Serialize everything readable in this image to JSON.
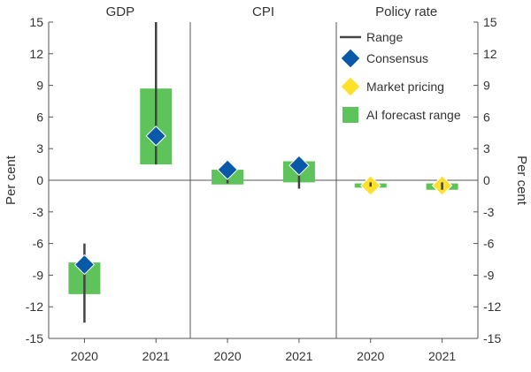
{
  "chart_data": {
    "type": "range-marker",
    "panels": [
      {
        "title": "GDP",
        "categories": [
          "2020",
          "2021"
        ],
        "range": [
          [
            -13.5,
            -6.0
          ],
          [
            1.5,
            15.0
          ]
        ],
        "consensus": [
          -8.0,
          4.2
        ],
        "market_pricing": [
          null,
          null
        ],
        "ai_forecast_range": [
          [
            -10.8,
            -7.8
          ],
          [
            1.5,
            8.7
          ]
        ]
      },
      {
        "title": "CPI",
        "categories": [
          "2020",
          "2021"
        ],
        "range": [
          [
            -0.3,
            1.5
          ],
          [
            -0.8,
            2.0
          ]
        ],
        "consensus": [
          1.0,
          1.4
        ],
        "market_pricing": [
          null,
          null
        ],
        "ai_forecast_range": [
          [
            -0.4,
            1.0
          ],
          [
            -0.2,
            1.8
          ]
        ]
      },
      {
        "title": "Policy rate",
        "categories": [
          "2020",
          "2021"
        ],
        "range": [
          [
            -0.6,
            -0.2
          ],
          [
            -0.9,
            -0.2
          ]
        ],
        "consensus": [
          null,
          null
        ],
        "market_pricing": [
          -0.5,
          -0.5
        ],
        "ai_forecast_range": [
          [
            -0.7,
            -0.3
          ],
          [
            -0.9,
            -0.3
          ]
        ]
      }
    ],
    "ylim": [
      -15,
      15
    ],
    "yticks": [
      -15,
      -12,
      -9,
      -6,
      -3,
      0,
      3,
      6,
      9,
      12,
      15
    ],
    "ylabel_left": "Per cent",
    "ylabel_right": "Per cent",
    "legend": {
      "position": "top-right",
      "items": [
        {
          "key": "range",
          "label": "Range",
          "color": "#444444"
        },
        {
          "key": "consensus",
          "label": "Consensus",
          "color": "#0a58a8"
        },
        {
          "key": "market_pricing",
          "label": "Market pricing",
          "color": "#ffe02a"
        },
        {
          "key": "ai_forecast_range",
          "label": "AI forecast range",
          "color": "#5ec35a"
        }
      ]
    }
  }
}
